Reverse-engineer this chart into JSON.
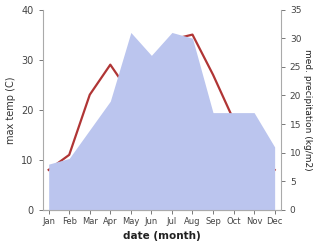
{
  "months": [
    "Jan",
    "Feb",
    "Mar",
    "Apr",
    "May",
    "Jun",
    "Jul",
    "Aug",
    "Sep",
    "Oct",
    "Nov",
    "Dec"
  ],
  "temperature": [
    8,
    11,
    23,
    29,
    23,
    28,
    34,
    35,
    27,
    18,
    12,
    8
  ],
  "precipitation": [
    8,
    9,
    14,
    19,
    31,
    27,
    31,
    30,
    17,
    17,
    17,
    11
  ],
  "temp_color": "#b03535",
  "precip_fill_color": "#bbc5ee",
  "left_ylim": [
    0,
    40
  ],
  "right_ylim": [
    0,
    35
  ],
  "left_yticks": [
    0,
    10,
    20,
    30,
    40
  ],
  "right_yticks": [
    0,
    5,
    10,
    15,
    20,
    25,
    30,
    35
  ],
  "ylabel_left": "max temp (C)",
  "ylabel_right": "med. precipitation (kg/m2)",
  "xlabel": "date (month)",
  "background_color": "#ffffff",
  "temp_linewidth": 1.6
}
